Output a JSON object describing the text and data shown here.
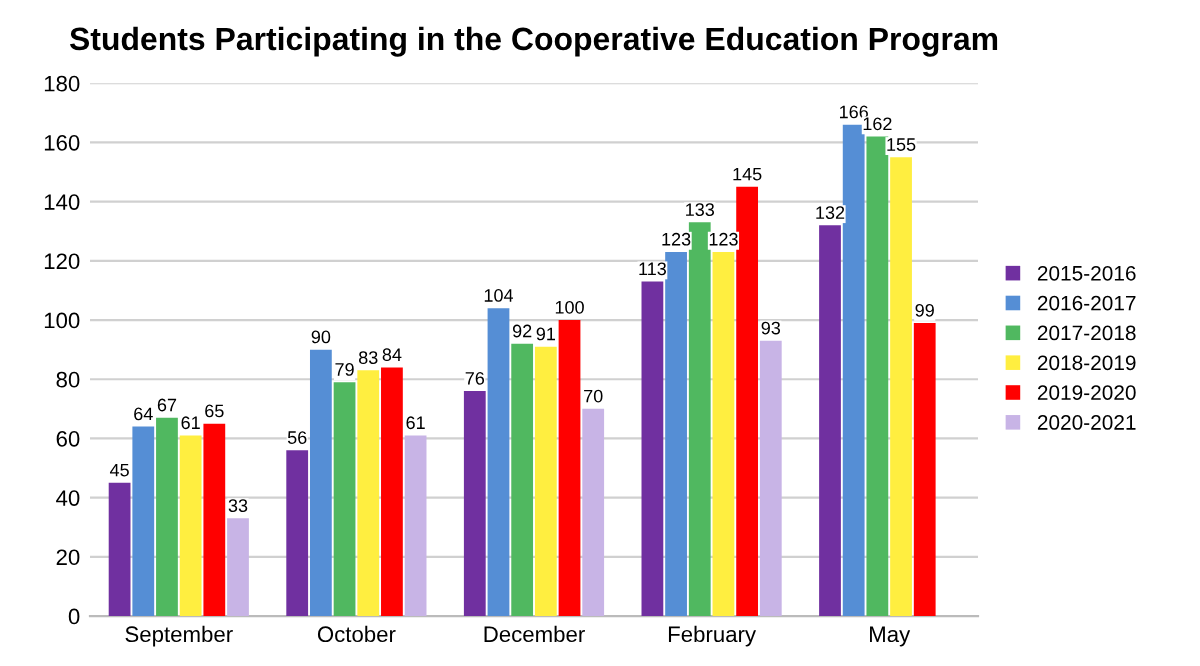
{
  "chart_data": {
    "type": "bar",
    "title": "Students Participating in the Cooperative Education Program",
    "categories": [
      "September",
      "October",
      "December",
      "February",
      "May"
    ],
    "series": [
      {
        "name": "2015-2016",
        "color": "#7030a0",
        "values": [
          45,
          56,
          76,
          113,
          132
        ]
      },
      {
        "name": "2016-2017",
        "color": "#558ed5",
        "values": [
          64,
          90,
          104,
          123,
          166
        ]
      },
      {
        "name": "2017-2018",
        "color": "#50b860",
        "values": [
          67,
          79,
          92,
          133,
          162
        ]
      },
      {
        "name": "2018-2019",
        "color": "#ffee40",
        "values": [
          61,
          83,
          91,
          123,
          155
        ]
      },
      {
        "name": "2019-2020",
        "color": "#ff0000",
        "values": [
          65,
          84,
          100,
          145,
          99
        ]
      },
      {
        "name": "2020-2021",
        "color": "#c8b4e6",
        "values": [
          33,
          61,
          70,
          93,
          null
        ]
      }
    ],
    "ylim": [
      0,
      180
    ],
    "yticks": [
      0,
      20,
      40,
      60,
      80,
      100,
      120,
      140,
      160,
      180
    ],
    "grid": "y",
    "legend": "right",
    "data_labels": true
  }
}
